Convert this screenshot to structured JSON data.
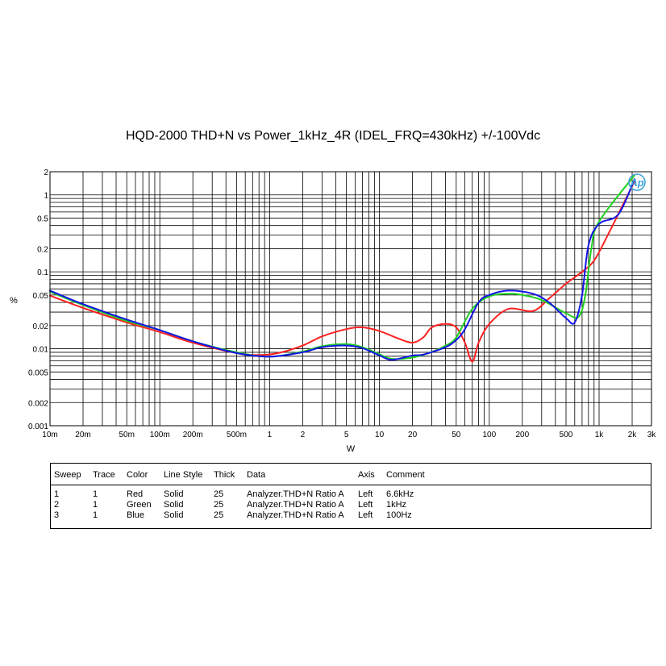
{
  "chart_data": {
    "type": "line",
    "title": "HQD-2000 THD+N vs Power_1kHz_4R (IDEL_FRQ=430kHz) +/-100Vdc",
    "xlabel": "W",
    "ylabel": "%",
    "x_scale": "log",
    "y_scale": "log",
    "xlim": [
      0.01,
      3000
    ],
    "ylim": [
      0.001,
      2
    ],
    "grid": true,
    "x_ticks": [
      {
        "v": 0.01,
        "label": "10m"
      },
      {
        "v": 0.02,
        "label": "20m"
      },
      {
        "v": 0.05,
        "label": "50m"
      },
      {
        "v": 0.1,
        "label": "100m"
      },
      {
        "v": 0.2,
        "label": "200m"
      },
      {
        "v": 0.5,
        "label": "500m"
      },
      {
        "v": 1,
        "label": "1"
      },
      {
        "v": 2,
        "label": "2"
      },
      {
        "v": 5,
        "label": "5"
      },
      {
        "v": 10,
        "label": "10"
      },
      {
        "v": 20,
        "label": "20"
      },
      {
        "v": 50,
        "label": "50"
      },
      {
        "v": 100,
        "label": "100"
      },
      {
        "v": 200,
        "label": "200"
      },
      {
        "v": 500,
        "label": "500"
      },
      {
        "v": 1000,
        "label": "1k"
      },
      {
        "v": 2000,
        "label": "2k"
      },
      {
        "v": 3000,
        "label": "3k"
      }
    ],
    "y_ticks": [
      {
        "v": 0.001,
        "label": "0.001"
      },
      {
        "v": 0.002,
        "label": "0.002"
      },
      {
        "v": 0.005,
        "label": "0.005"
      },
      {
        "v": 0.01,
        "label": "0.01"
      },
      {
        "v": 0.02,
        "label": "0.02"
      },
      {
        "v": 0.05,
        "label": "0.05"
      },
      {
        "v": 0.1,
        "label": "0.1"
      },
      {
        "v": 0.2,
        "label": "0.2"
      },
      {
        "v": 0.5,
        "label": "0.5"
      },
      {
        "v": 1,
        "label": "1"
      },
      {
        "v": 2,
        "label": "2"
      }
    ],
    "series": [
      {
        "name": "6.6kHz",
        "color": "#ff2020",
        "points": [
          [
            0.01,
            0.049
          ],
          [
            0.02,
            0.034
          ],
          [
            0.05,
            0.022
          ],
          [
            0.1,
            0.0165
          ],
          [
            0.2,
            0.012
          ],
          [
            0.5,
            0.0088
          ],
          [
            0.8,
            0.0083
          ],
          [
            1.2,
            0.0088
          ],
          [
            2,
            0.011
          ],
          [
            3,
            0.0145
          ],
          [
            5,
            0.018
          ],
          [
            7,
            0.019
          ],
          [
            10,
            0.017
          ],
          [
            15,
            0.0135
          ],
          [
            20,
            0.012
          ],
          [
            25,
            0.014
          ],
          [
            30,
            0.019
          ],
          [
            40,
            0.021
          ],
          [
            50,
            0.019
          ],
          [
            60,
            0.012
          ],
          [
            70,
            0.0068
          ],
          [
            80,
            0.012
          ],
          [
            100,
            0.021
          ],
          [
            150,
            0.033
          ],
          [
            250,
            0.031
          ],
          [
            350,
            0.045
          ],
          [
            500,
            0.07
          ],
          [
            700,
            0.1
          ],
          [
            900,
            0.14
          ],
          [
            1200,
            0.3
          ],
          [
            2100,
            1.5
          ]
        ]
      },
      {
        "name": "1kHz",
        "color": "#20d020",
        "points": [
          [
            0.01,
            0.055
          ],
          [
            0.02,
            0.037
          ],
          [
            0.05,
            0.023
          ],
          [
            0.1,
            0.0175
          ],
          [
            0.2,
            0.0125
          ],
          [
            0.5,
            0.009
          ],
          [
            1,
            0.0079
          ],
          [
            2,
            0.0092
          ],
          [
            3,
            0.0108
          ],
          [
            5,
            0.0115
          ],
          [
            7,
            0.0105
          ],
          [
            10,
            0.0085
          ],
          [
            13,
            0.0074
          ],
          [
            20,
            0.0077
          ],
          [
            30,
            0.0091
          ],
          [
            40,
            0.011
          ],
          [
            50,
            0.014
          ],
          [
            70,
            0.033
          ],
          [
            100,
            0.048
          ],
          [
            150,
            0.052
          ],
          [
            200,
            0.05
          ],
          [
            300,
            0.043
          ],
          [
            500,
            0.029
          ],
          [
            650,
            0.026
          ],
          [
            750,
            0.05
          ],
          [
            850,
            0.2
          ],
          [
            1000,
            0.45
          ],
          [
            2100,
            1.8
          ]
        ]
      },
      {
        "name": "100Hz",
        "color": "#1414e6",
        "points": [
          [
            0.01,
            0.057
          ],
          [
            0.02,
            0.038
          ],
          [
            0.05,
            0.024
          ],
          [
            0.1,
            0.0175
          ],
          [
            0.2,
            0.0125
          ],
          [
            0.5,
            0.0088
          ],
          [
            1,
            0.0079
          ],
          [
            2,
            0.009
          ],
          [
            3,
            0.0105
          ],
          [
            5,
            0.011
          ],
          [
            7,
            0.0102
          ],
          [
            10,
            0.0082
          ],
          [
            13,
            0.0072
          ],
          [
            20,
            0.0082
          ],
          [
            25,
            0.0084
          ],
          [
            40,
            0.0105
          ],
          [
            50,
            0.013
          ],
          [
            60,
            0.018
          ],
          [
            80,
            0.04
          ],
          [
            100,
            0.05
          ],
          [
            150,
            0.057
          ],
          [
            250,
            0.052
          ],
          [
            350,
            0.04
          ],
          [
            500,
            0.025
          ],
          [
            600,
            0.022
          ],
          [
            700,
            0.05
          ],
          [
            800,
            0.22
          ],
          [
            1000,
            0.42
          ],
          [
            1500,
            0.56
          ],
          [
            2100,
            1.6
          ]
        ]
      }
    ]
  },
  "legend_table": {
    "headers": {
      "sweep": "Sweep",
      "trace": "Trace",
      "color": "Color",
      "line_style": "Line Style",
      "thick": "Thick",
      "data": "Data",
      "axis": "Axis",
      "comment": "Comment"
    },
    "rows": [
      {
        "sweep": "1",
        "trace": "1",
        "color": "Red",
        "line_style": "Solid",
        "thick": "25",
        "data": "Analyzer.THD+N Ratio A",
        "axis": "Left",
        "comment": "6.6kHz"
      },
      {
        "sweep": "2",
        "trace": "1",
        "color": "Green",
        "line_style": "Solid",
        "thick": "25",
        "data": "Analyzer.THD+N Ratio A",
        "axis": "Left",
        "comment": "1kHz"
      },
      {
        "sweep": "3",
        "trace": "1",
        "color": "Blue",
        "line_style": "Solid",
        "thick": "25",
        "data": "Analyzer.THD+N Ratio A",
        "axis": "Left",
        "comment": "100Hz"
      }
    ]
  },
  "logo": {
    "text": "Ap",
    "color": "#3aa0d8"
  }
}
